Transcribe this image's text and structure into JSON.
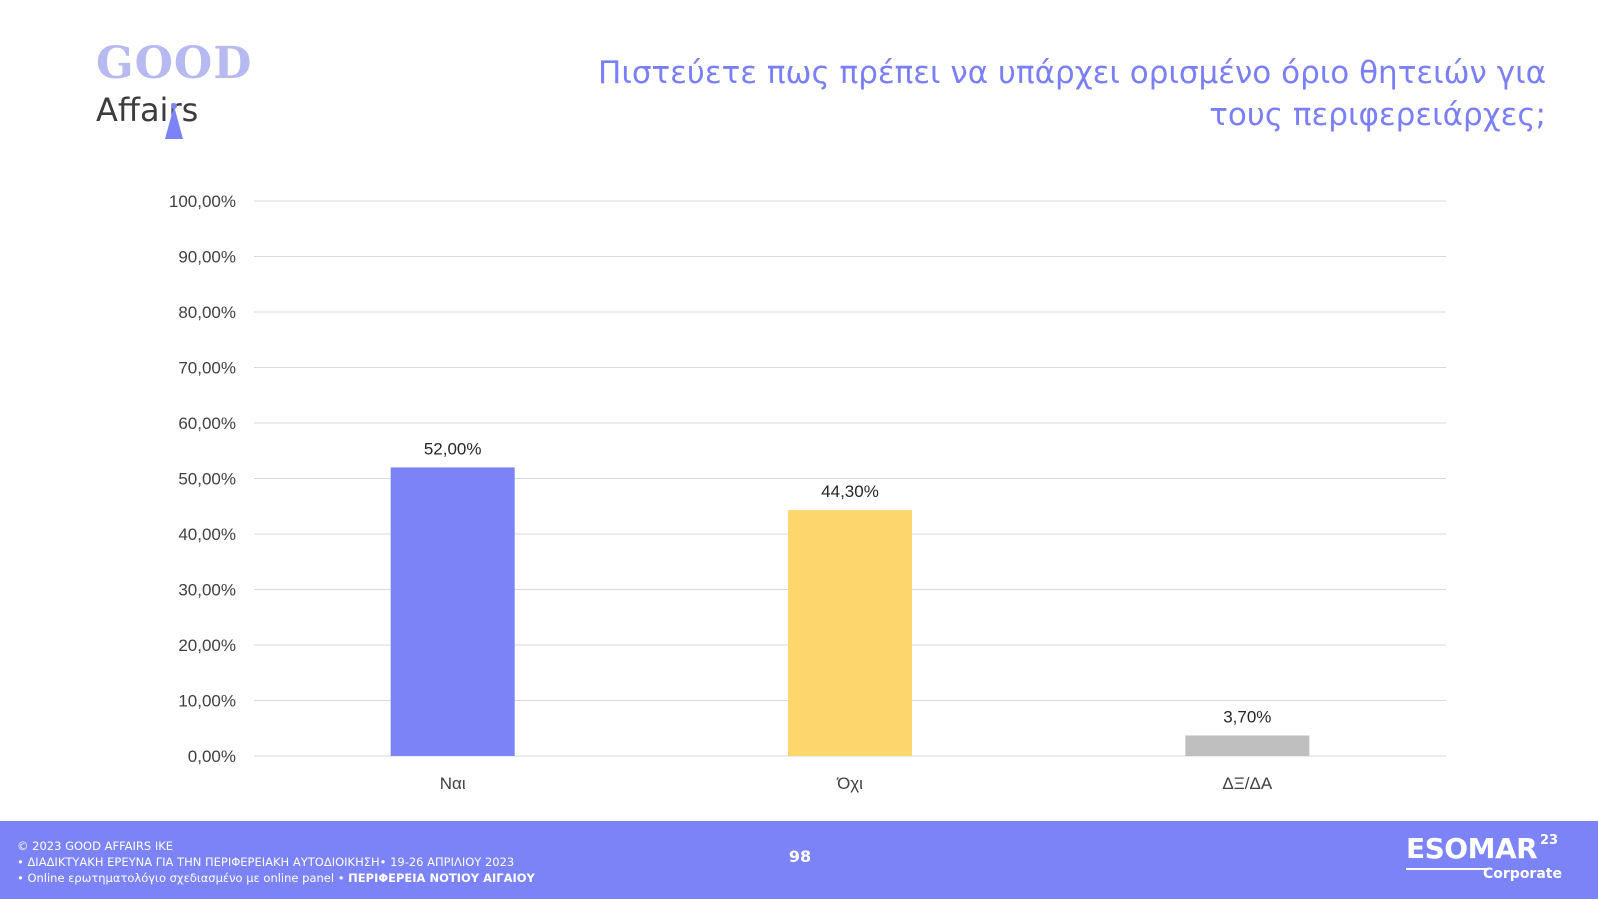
{
  "logo": {
    "line1": "GOOD",
    "line2": "Affairs"
  },
  "title": "Πιστεύετε πως πρέπει να υπάρχει ορισμένο όριο θητειών για τους περιφερειάρχες;",
  "chart_data": {
    "type": "bar",
    "categories": [
      "Ναι",
      "Όχι",
      "ΔΞ/ΔΑ"
    ],
    "values": [
      52.0,
      44.3,
      3.7
    ],
    "value_labels": [
      "52,00%",
      "44,30%",
      "3,70%"
    ],
    "bar_colors": [
      "#7b83f7",
      "#fdd66e",
      "#bfbfbf"
    ],
    "ylim": [
      0,
      100
    ],
    "yticks": [
      0,
      10,
      20,
      30,
      40,
      50,
      60,
      70,
      80,
      90,
      100
    ],
    "ytick_labels": [
      "0,00%",
      "10,00%",
      "20,00%",
      "30,00%",
      "40,00%",
      "50,00%",
      "60,00%",
      "70,00%",
      "80,00%",
      "90,00%",
      "100,00%"
    ],
    "grid": true,
    "title": "",
    "xlabel": "",
    "ylabel": ""
  },
  "footer": {
    "copyright": "© 2023 GOOD AFFAIRS IKE",
    "survey": "• ΔΙΑΔΙΚΤΥΑΚΗ ΕΡΕΥΝΑ  ΓΙΑ ΤΗΝ ΠΕΡΙΦΕΡΕΙΑΚΗ ΑΥΤΟΔΙΟΙΚΗΣΗ• 19-26 ΑΠΡΙΛΙΟΥ 2023",
    "method": "• Online ερωτηματολόγιο σχεδιασμένο με online panel  •",
    "region": "ΠΕΡΙΦΕΡΕΙΑ ΝΟΤΙΟΥ ΑΙΓΑΙΟΥ",
    "page_number": "98",
    "esomar_word": "ESOMAR",
    "esomar_year": "23",
    "esomar_corporate": "Corporate"
  },
  "colors": {
    "accent": "#7b83f7",
    "title": "#7b7ff7"
  }
}
